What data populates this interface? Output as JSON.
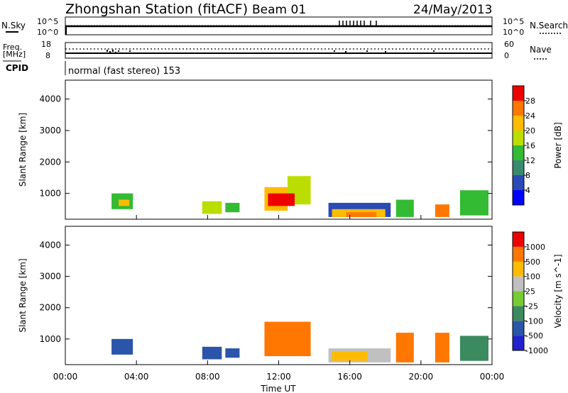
{
  "header": {
    "station": "Zhongshan Station (fitACF)",
    "beam": "Beam 01",
    "date": "24/May/2013"
  },
  "top_panels": {
    "nsky_label": "N.Sky",
    "nsky_top": "10^5",
    "nsky_bottom": "10^0",
    "nsearch_label": "N.Search",
    "nsearch_top": "10^5",
    "nsearch_bottom": "10^0",
    "freq_label_line1": "Freq.",
    "freq_label_line2": "[MHz]",
    "freq_top": "18",
    "freq_bottom": "8",
    "nave_label": "Nave",
    "nave_top": "60",
    "nave_bottom": "0",
    "cpid_label": "CPID",
    "cpid_text": "normal (fast stereo) 153"
  },
  "chart_data": [
    {
      "type": "heatmap",
      "panel": "power",
      "ylabel": "Slant Range [km]",
      "xlabel": "",
      "x_ticks": [
        "00:00",
        "04:00",
        "08:00",
        "12:00",
        "16:00",
        "20:00",
        "00:00"
      ],
      "x_range_hours": [
        0,
        24
      ],
      "y_ticks": [
        1000,
        2000,
        3000,
        4000
      ],
      "ylim": [
        180,
        4600
      ],
      "colorbar": {
        "label": "Power [dB]",
        "ticks": [
          "4",
          "8",
          "12",
          "16",
          "20",
          "24",
          "28"
        ],
        "colors": [
          "#0000ff",
          "#2a4ab5",
          "#3a8a70",
          "#33bb33",
          "#bbdd00",
          "#ffbb00",
          "#ff7700",
          "#ee0000"
        ]
      },
      "patches": [
        {
          "t0": 2.6,
          "t1": 3.8,
          "r0": 500,
          "r1": 1000,
          "level": 3
        },
        {
          "t0": 3.0,
          "t1": 3.6,
          "r0": 600,
          "r1": 800,
          "level": 5
        },
        {
          "t0": 7.7,
          "t1": 8.8,
          "r0": 350,
          "r1": 750,
          "level": 4
        },
        {
          "t0": 9.0,
          "t1": 9.8,
          "r0": 400,
          "r1": 700,
          "level": 3
        },
        {
          "t0": 11.2,
          "t1": 12.5,
          "r0": 450,
          "r1": 1200,
          "level": 5
        },
        {
          "t0": 12.5,
          "t1": 13.8,
          "r0": 650,
          "r1": 1550,
          "level": 4
        },
        {
          "t0": 11.4,
          "t1": 12.9,
          "r0": 600,
          "r1": 1000,
          "level": 7
        },
        {
          "t0": 14.8,
          "t1": 18.3,
          "r0": 250,
          "r1": 700,
          "level": 1
        },
        {
          "t0": 15.0,
          "t1": 18.0,
          "r0": 250,
          "r1": 500,
          "level": 5
        },
        {
          "t0": 15.8,
          "t1": 17.5,
          "r0": 250,
          "r1": 400,
          "level": 6
        },
        {
          "t0": 18.6,
          "t1": 19.6,
          "r0": 250,
          "r1": 800,
          "level": 3
        },
        {
          "t0": 20.8,
          "t1": 21.6,
          "r0": 250,
          "r1": 650,
          "level": 6
        },
        {
          "t0": 22.2,
          "t1": 23.8,
          "r0": 300,
          "r1": 1100,
          "level": 3
        }
      ]
    },
    {
      "type": "heatmap",
      "panel": "velocity",
      "ylabel": "Slant Range [km]",
      "xlabel": "Time UT",
      "x_ticks": [
        "00:00",
        "04:00",
        "08:00",
        "12:00",
        "16:00",
        "20:00",
        "00:00"
      ],
      "x_range_hours": [
        0,
        24
      ],
      "y_ticks": [
        1000,
        2000,
        3000,
        4000
      ],
      "ylim": [
        180,
        4600
      ],
      "colorbar": {
        "label": "Velocity [m s^-1]",
        "ticks": [
          "1000",
          "500",
          "100",
          "25",
          "-25",
          "-100",
          "-500",
          "-1000"
        ],
        "colors": [
          "#2222cc",
          "#2a55aa",
          "#3c8a60",
          "#77cc33",
          "#c0c0c0",
          "#ffbb00",
          "#ff7700",
          "#ee0000"
        ]
      },
      "patches": [
        {
          "t0": 2.6,
          "t1": 3.8,
          "r0": 500,
          "r1": 1000,
          "level": 1
        },
        {
          "t0": 7.7,
          "t1": 8.8,
          "r0": 350,
          "r1": 750,
          "level": 1
        },
        {
          "t0": 9.0,
          "t1": 9.8,
          "r0": 400,
          "r1": 700,
          "level": 1
        },
        {
          "t0": 11.2,
          "t1": 13.8,
          "r0": 450,
          "r1": 1550,
          "level": 6
        },
        {
          "t0": 14.8,
          "t1": 18.3,
          "r0": 250,
          "r1": 700,
          "level": 4
        },
        {
          "t0": 15.0,
          "t1": 17.0,
          "r0": 300,
          "r1": 600,
          "level": 5
        },
        {
          "t0": 18.6,
          "t1": 19.6,
          "r0": 250,
          "r1": 1200,
          "level": 6
        },
        {
          "t0": 20.8,
          "t1": 21.6,
          "r0": 250,
          "r1": 1200,
          "level": 6
        },
        {
          "t0": 22.2,
          "t1": 23.8,
          "r0": 300,
          "r1": 1100,
          "level": 2
        }
      ]
    }
  ]
}
